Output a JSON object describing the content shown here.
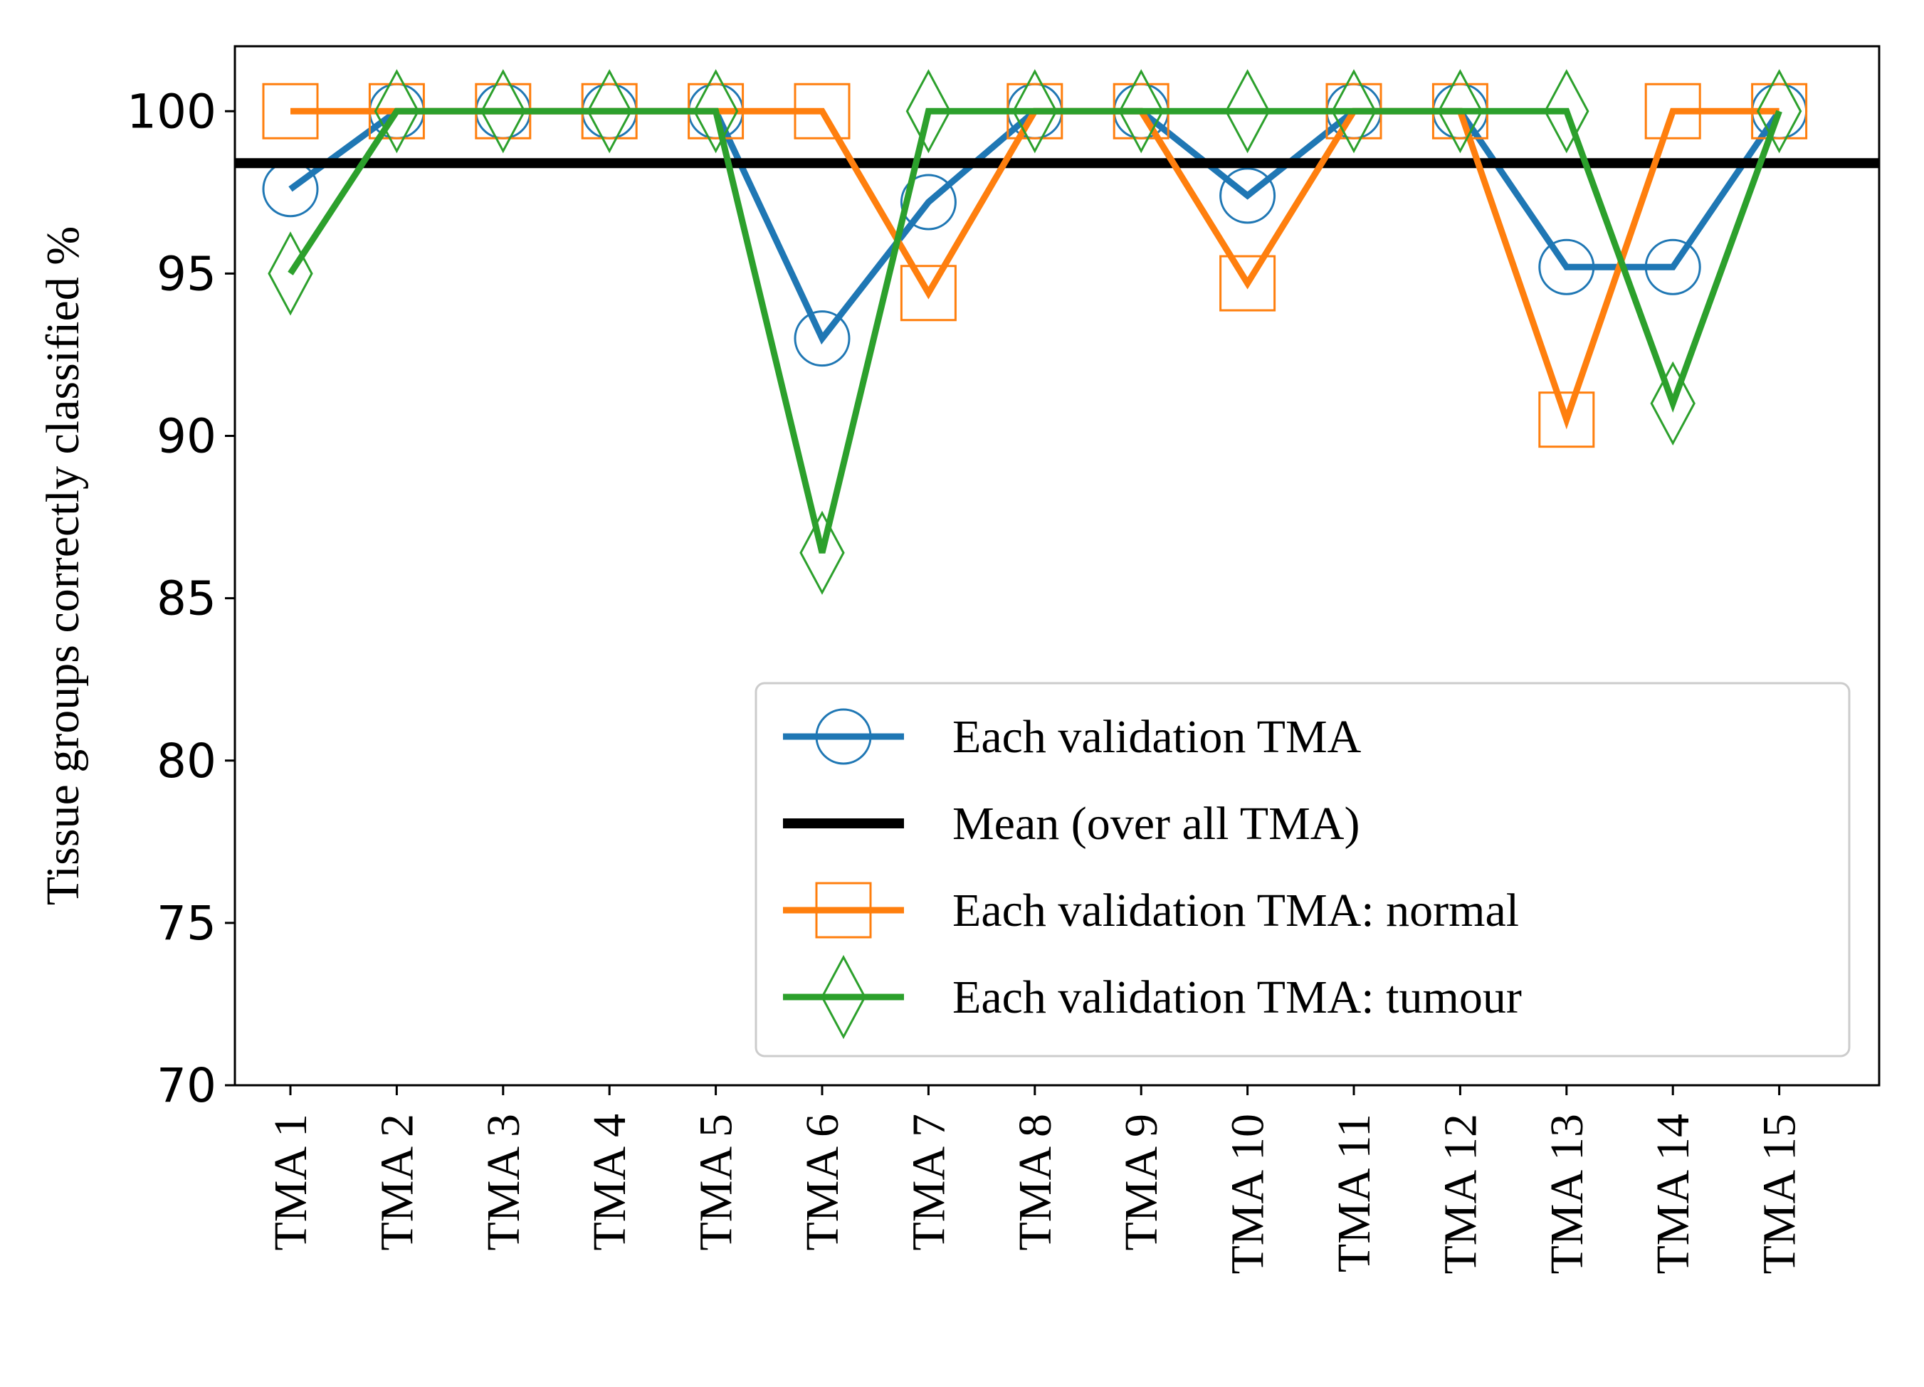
{
  "chart_data": {
    "type": "line",
    "title": "",
    "xlabel": "",
    "ylabel": "Tissue groups correctly classified %",
    "ylim": [
      70,
      102
    ],
    "yticks": [
      70,
      75,
      80,
      85,
      90,
      95,
      100
    ],
    "grid": false,
    "legend_position": "lower-right",
    "categories": [
      "TMA 1",
      "TMA 2",
      "TMA 3",
      "TMA 4",
      "TMA 5",
      "TMA 6",
      "TMA 7",
      "TMA 8",
      "TMA 9",
      "TMA 10",
      "TMA 11",
      "TMA 12",
      "TMA 13",
      "TMA 14",
      "TMA 15"
    ],
    "mean_line": {
      "name": "Mean (over all TMA)",
      "value": 98.4,
      "color": "#000000"
    },
    "series": [
      {
        "name": "Each validation TMA",
        "marker": "circle",
        "color": "#1f77b4",
        "values": [
          97.6,
          100,
          100,
          100,
          100,
          93.0,
          97.2,
          100,
          100,
          97.4,
          100,
          100,
          95.2,
          95.2,
          100
        ]
      },
      {
        "name": "Each validation TMA: normal",
        "marker": "square",
        "color": "#ff7f0e",
        "values": [
          100,
          100,
          100,
          100,
          100,
          100,
          94.4,
          100,
          100,
          94.7,
          100,
          100,
          90.5,
          100,
          100
        ]
      },
      {
        "name": "Each validation TMA: tumour",
        "marker": "diamond",
        "color": "#2ca02c",
        "values": [
          95.0,
          100,
          100,
          100,
          100,
          86.4,
          100,
          100,
          100,
          100,
          100,
          100,
          100,
          91.0,
          100
        ]
      }
    ],
    "legend_order": [
      "Each validation TMA",
      "Mean (over all TMA)",
      "Each validation TMA: normal",
      "Each validation TMA: tumour"
    ]
  }
}
